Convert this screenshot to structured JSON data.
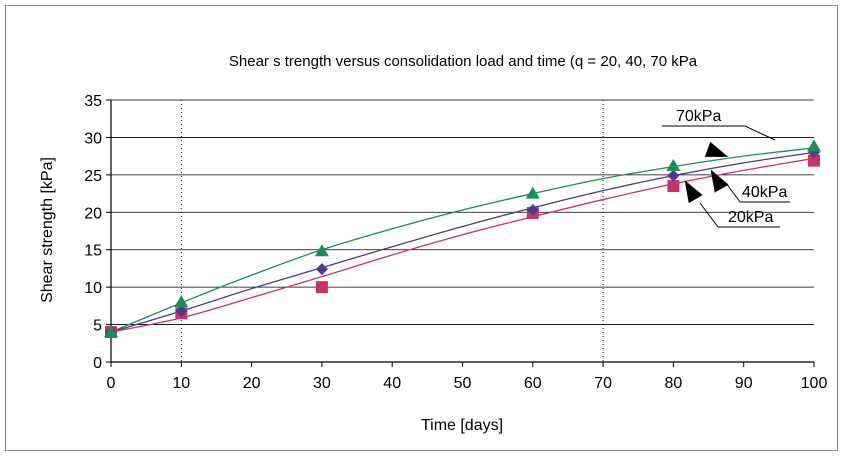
{
  "chart_data": {
    "type": "line",
    "title": "Shear s trength versus consolidation load and time (q = 20, 40, 70 kPa",
    "xlabel": "Time [days]",
    "ylabel": "Shear strength  [kPa]",
    "xlim": [
      0,
      100
    ],
    "ylim": [
      0,
      35
    ],
    "xticks": [
      0,
      10,
      20,
      30,
      40,
      50,
      60,
      70,
      80,
      90,
      100
    ],
    "yticks": [
      0,
      5,
      10,
      15,
      20,
      25,
      30,
      35
    ],
    "grid": "horizontal",
    "series": [
      {
        "name": "70kPa",
        "marker": "triangle",
        "color": "#1e8c5a",
        "x": [
          0,
          10,
          30,
          60,
          80,
          100
        ],
        "values": [
          4,
          8,
          14.8,
          22.5,
          26.2,
          28.8
        ],
        "curve": [
          [
            0,
            4
          ],
          [
            10,
            7.9
          ],
          [
            20,
            11.6
          ],
          [
            30,
            15
          ],
          [
            40,
            17.8
          ],
          [
            50,
            20.3
          ],
          [
            60,
            22.5
          ],
          [
            70,
            24.5
          ],
          [
            80,
            26.1
          ],
          [
            90,
            27.5
          ],
          [
            100,
            28.6
          ]
        ]
      },
      {
        "name": "40kPa",
        "marker": "diamond",
        "color": "#4b3b8c",
        "x": [
          0,
          10,
          30,
          60,
          80,
          100
        ],
        "values": [
          4,
          6.8,
          12.4,
          20.3,
          24.9,
          28
        ],
        "curve": [
          [
            0,
            4
          ],
          [
            10,
            6.8
          ],
          [
            20,
            9.8
          ],
          [
            30,
            12.6
          ],
          [
            40,
            15.4
          ],
          [
            50,
            18.1
          ],
          [
            60,
            20.6
          ],
          [
            70,
            22.9
          ],
          [
            80,
            24.9
          ],
          [
            90,
            26.6
          ],
          [
            100,
            28
          ]
        ]
      },
      {
        "name": "20kPa",
        "marker": "square",
        "color": "#c8326e",
        "x": [
          0,
          10,
          30,
          60,
          80,
          100
        ],
        "values": [
          4,
          6.5,
          10,
          19.9,
          23.5,
          26.9
        ],
        "curve": [
          [
            0,
            4
          ],
          [
            10,
            5.9
          ],
          [
            20,
            8.6
          ],
          [
            30,
            11.4
          ],
          [
            40,
            14.3
          ],
          [
            50,
            17
          ],
          [
            60,
            19.4
          ],
          [
            70,
            21.7
          ],
          [
            80,
            23.8
          ],
          [
            90,
            25.6
          ],
          [
            100,
            27.2
          ]
        ]
      }
    ],
    "vertical_dotted_lines": [
      10,
      70
    ],
    "annotations": [
      {
        "text": "70kPa",
        "series": "70kPa"
      },
      {
        "text": "40kPa",
        "series": "40kPa"
      },
      {
        "text": "20kPa",
        "series": "20kPa"
      }
    ]
  }
}
